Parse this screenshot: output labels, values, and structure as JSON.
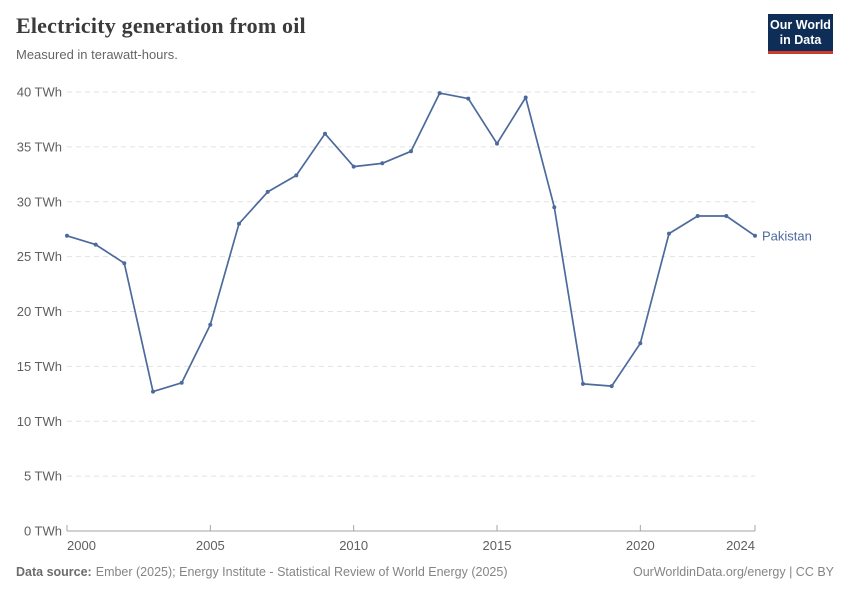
{
  "header": {
    "title": "Electricity generation from oil",
    "subtitle": "Measured in terawatt-hours.",
    "logo": {
      "line1": "Our World",
      "line2": "in Data"
    }
  },
  "chart_data": {
    "type": "line",
    "title": "Electricity generation from oil",
    "subtitle": "Measured in terawatt-hours.",
    "unit": "TWh",
    "x": [
      2000,
      2001,
      2002,
      2003,
      2004,
      2005,
      2006,
      2007,
      2008,
      2009,
      2010,
      2011,
      2012,
      2013,
      2014,
      2015,
      2016,
      2017,
      2018,
      2019,
      2020,
      2021,
      2022,
      2023,
      2024
    ],
    "series": [
      {
        "name": "Pakistan",
        "color": "#4c6a9c",
        "values": [
          26.9,
          26.1,
          24.4,
          12.7,
          13.5,
          18.8,
          28.0,
          30.9,
          32.4,
          36.2,
          33.2,
          33.5,
          34.6,
          39.9,
          39.4,
          35.3,
          39.5,
          29.5,
          13.4,
          13.2,
          17.1,
          27.1,
          28.7,
          28.7,
          26.9
        ]
      }
    ],
    "xlim": [
      2000,
      2024
    ],
    "ylim": [
      0,
      40
    ],
    "x_ticks": [
      2000,
      2005,
      2010,
      2015,
      2020,
      2024
    ],
    "x_tick_labels": [
      "2000",
      "2005",
      "2010",
      "2015",
      "2020",
      "2024"
    ],
    "y_ticks": [
      0,
      5,
      10,
      15,
      20,
      25,
      30,
      35,
      40
    ],
    "y_tick_labels": [
      "0 TWh",
      "5 TWh",
      "10 TWh",
      "15 TWh",
      "20 TWh",
      "25 TWh",
      "30 TWh",
      "35 TWh",
      "40 TWh"
    ],
    "grid": "horizontal-dashed",
    "legend": "end-of-line-label",
    "end_label": "Pakistan"
  },
  "footer": {
    "source_label": "Data source:",
    "source_text": "Ember (2025); Energy Institute - Statistical Review of World Energy (2025)",
    "credit": "OurWorldinData.org/energy | CC BY"
  },
  "colors": {
    "line": "#4c6a9c",
    "logo_bg": "#0f2e57",
    "logo_stripe": "#cf3a2e",
    "grid": "#e2e2e2",
    "axis": "#a5a5a5",
    "tick_text": "#5f5f5f",
    "title_text": "#3b3b3b",
    "subtitle_text": "#666666",
    "footer_text": "#858585"
  }
}
